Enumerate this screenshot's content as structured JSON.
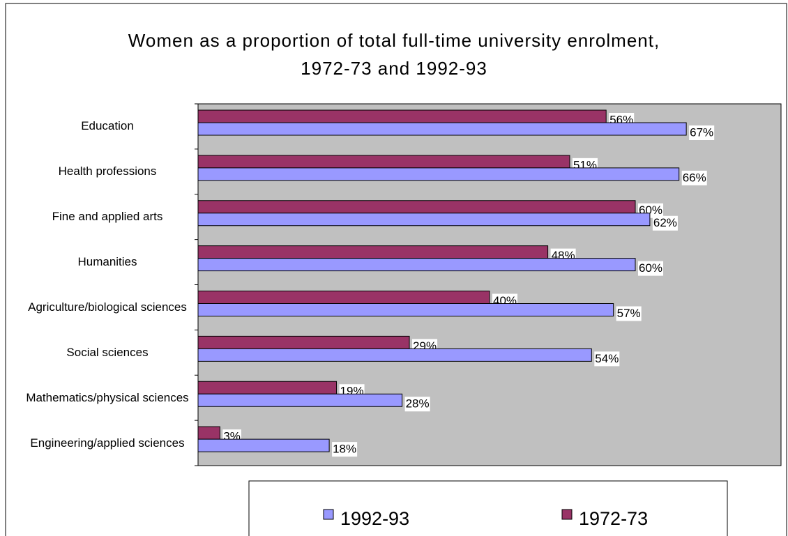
{
  "chart_data": {
    "type": "hbar",
    "title": "Women as a proportion of total full-time university enrolment, 1972-73 and 1992-93",
    "categories": [
      "Education",
      "Health professions",
      "Fine and applied arts",
      "Humanities",
      "Agriculture/biological sciences",
      "Social sciences",
      "Mathematics/physical sciences",
      "Engineering/applied sciences"
    ],
    "series": [
      {
        "name": "1992-93",
        "color": "#9999ff",
        "values": [
          67,
          66,
          62,
          60,
          57,
          54,
          28,
          18
        ],
        "value_labels": [
          "67%",
          "66%",
          "62%",
          "60%",
          "57%",
          "54%",
          "28%",
          "18%"
        ]
      },
      {
        "name": "1972-73",
        "color": "#993366",
        "values": [
          56,
          51,
          60,
          48,
          40,
          29,
          19,
          3
        ],
        "value_labels": [
          "56%",
          "51%",
          "60%",
          "48%",
          "40%",
          "29%",
          "19%",
          "3%"
        ]
      }
    ],
    "xlim": [
      0,
      80
    ],
    "plot_background": "#c0c0c0",
    "legend": "bottom"
  }
}
